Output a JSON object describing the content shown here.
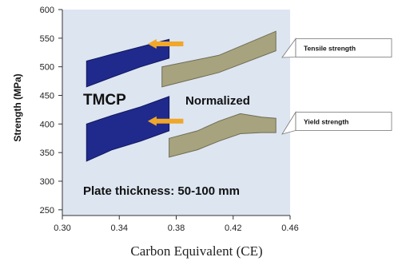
{
  "chart_data": {
    "type": "area",
    "xlabel": "Carbon Equivalent (CE)",
    "ylabel": "Strength (MPa)",
    "xlim": [
      0.3,
      0.46
    ],
    "ylim": [
      240,
      600
    ],
    "x_ticks": [
      "0.30",
      "0.34",
      "0.38",
      "0.42",
      "0.46"
    ],
    "y_ticks": [
      "250",
      "300",
      "350",
      "400",
      "450",
      "500",
      "550",
      "600"
    ],
    "grid": false,
    "colors": {
      "tmcp": "#1f2a8c",
      "normalized": "#a7a37f",
      "arrow": "#f0a72a",
      "plot_background": "#dde5f1"
    },
    "regions": [
      {
        "name": "TMCP tensile strength",
        "upper": [
          [
            0.317,
            510
          ],
          [
            0.335,
            522
          ],
          [
            0.355,
            535
          ],
          [
            0.375,
            548
          ]
        ],
        "lower": [
          [
            0.317,
            465
          ],
          [
            0.335,
            482
          ],
          [
            0.355,
            500
          ],
          [
            0.375,
            515
          ]
        ]
      },
      {
        "name": "Normalized tensile strength",
        "upper": [
          [
            0.37,
            500
          ],
          [
            0.41,
            520
          ],
          [
            0.45,
            562
          ]
        ],
        "lower": [
          [
            0.37,
            465
          ],
          [
            0.41,
            490
          ],
          [
            0.45,
            528
          ]
        ]
      },
      {
        "name": "TMCP yield strength",
        "upper": [
          [
            0.317,
            400
          ],
          [
            0.335,
            415
          ],
          [
            0.355,
            430
          ],
          [
            0.375,
            448
          ]
        ],
        "lower": [
          [
            0.317,
            335
          ],
          [
            0.335,
            355
          ],
          [
            0.355,
            370
          ],
          [
            0.375,
            388
          ]
        ]
      },
      {
        "name": "Normalized yield strength",
        "upper": [
          [
            0.375,
            375
          ],
          [
            0.395,
            388
          ],
          [
            0.41,
            405
          ],
          [
            0.425,
            418
          ],
          [
            0.44,
            412
          ],
          [
            0.45,
            410
          ]
        ],
        "lower": [
          [
            0.375,
            342
          ],
          [
            0.395,
            355
          ],
          [
            0.41,
            370
          ],
          [
            0.425,
            383
          ],
          [
            0.44,
            385
          ],
          [
            0.45,
            385
          ]
        ]
      }
    ],
    "arrows": [
      {
        "from": [
          0.385,
          540
        ],
        "to": [
          0.36,
          540
        ]
      },
      {
        "from": [
          0.385,
          405
        ],
        "to": [
          0.36,
          405
        ]
      }
    ],
    "annotations": {
      "tmcp": "TMCP",
      "normalized": "Normalized",
      "tensile": "Tensile strength",
      "yield": "Yield strength",
      "plate": "Plate thickness: 50-100 mm"
    }
  }
}
